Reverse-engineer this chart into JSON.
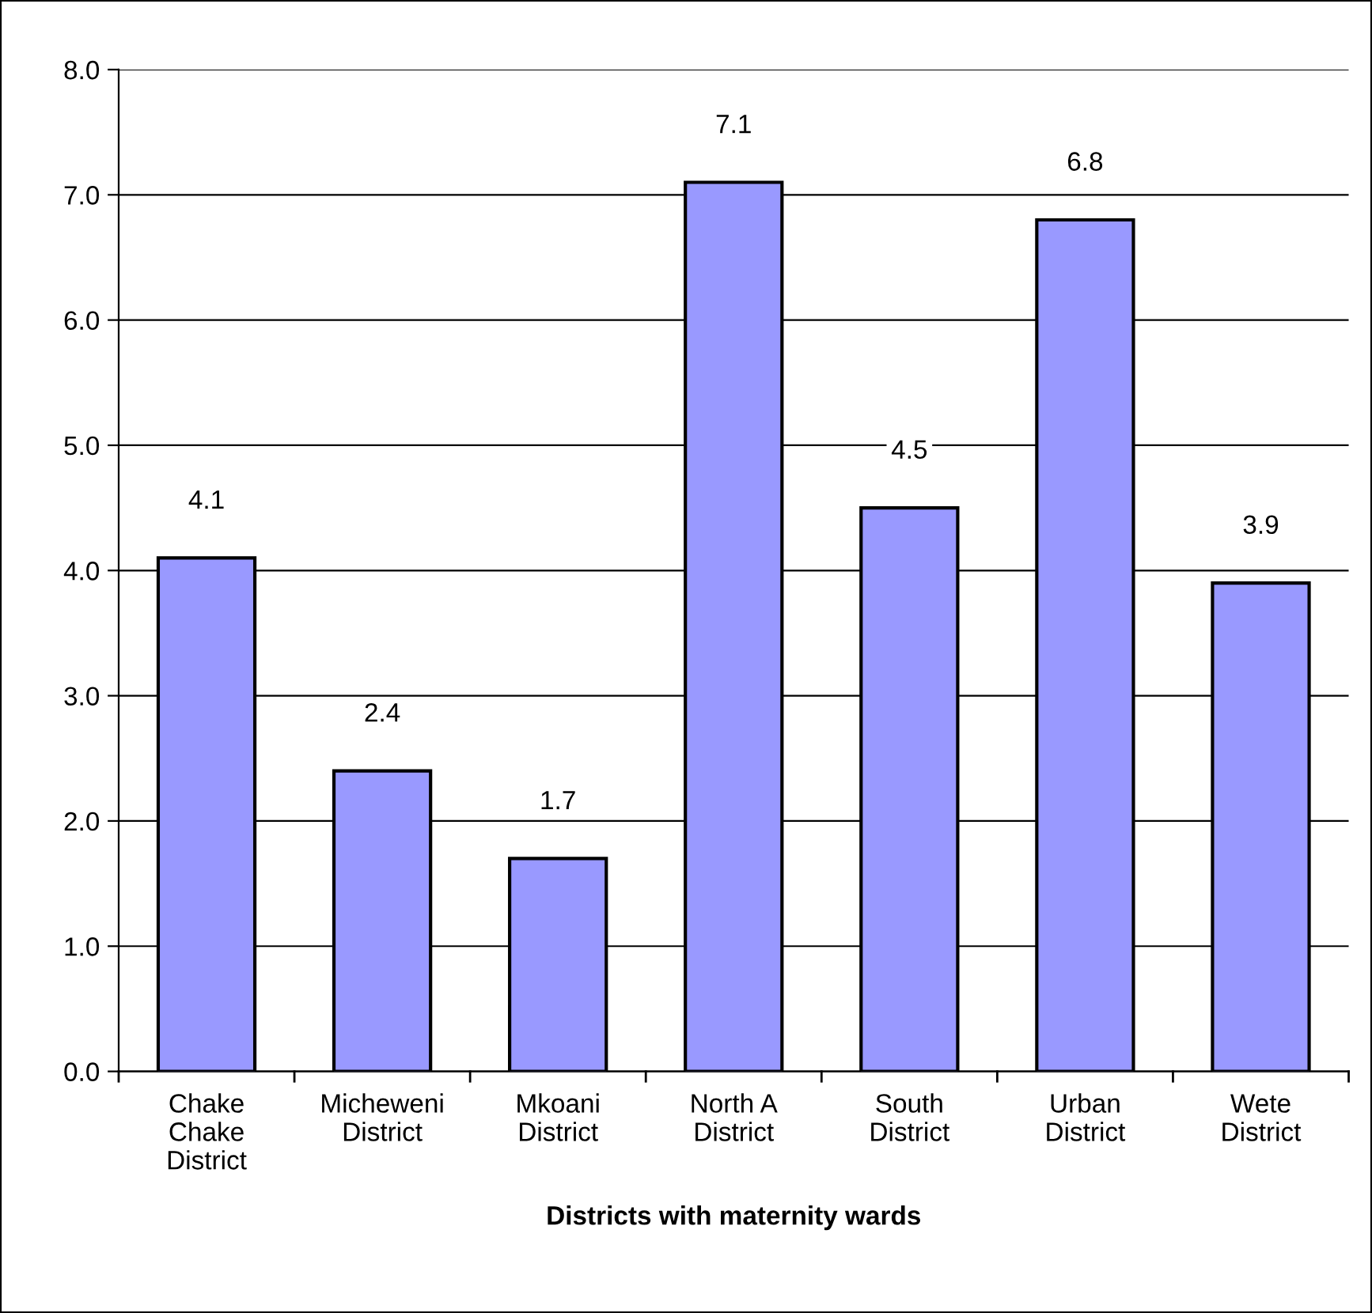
{
  "chart_data": {
    "type": "bar",
    "categories": [
      "Chake\nChake\nDistrict",
      "Micheweni\nDistrict",
      "Mkoani\nDistrict",
      "North A\nDistrict",
      "South\nDistrict",
      "Urban\nDistrict",
      "Wete\nDistrict"
    ],
    "values": [
      4.1,
      2.4,
      1.7,
      7.1,
      4.5,
      6.8,
      3.9
    ],
    "color": "#9999ff",
    "xlabel": "Districts with maternity wards",
    "ylim": [
      0,
      8
    ],
    "yticks": [
      {
        "value": 0,
        "label": "0.0"
      },
      {
        "value": 1,
        "label": "1.0"
      },
      {
        "value": 2,
        "label": "2.0"
      },
      {
        "value": 3,
        "label": "3.0"
      },
      {
        "value": 4,
        "label": "4.0"
      },
      {
        "value": 5,
        "label": "5.0"
      },
      {
        "value": 6,
        "label": "6.0"
      },
      {
        "value": 7,
        "label": "7.0"
      },
      {
        "value": 8,
        "label": "8.0"
      }
    ],
    "grid": "y",
    "data_labels": true
  }
}
